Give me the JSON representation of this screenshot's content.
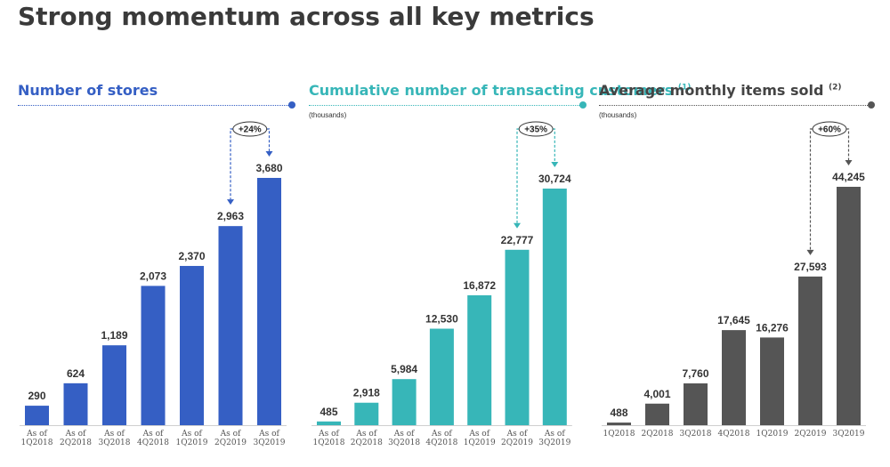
{
  "title": "Strong momentum across all key metrics",
  "colors": {
    "stores": "#355fc4",
    "customers": "#37b6b8",
    "items": "#555555",
    "rule_stores": "#355fc4",
    "rule_customers": "#37b6b8",
    "rule_items": "#555555"
  },
  "chart_data": [
    {
      "type": "bar",
      "title": "Number of stores",
      "title_note": "",
      "unit": "",
      "categories": [
        "As of 1Q2018",
        "As of 2Q2018",
        "As of 3Q2018",
        "As of 4Q2018",
        "As of 1Q2019",
        "As of 2Q2019",
        "As of 3Q2019"
      ],
      "tick_lines": [
        [
          "As of",
          "1Q2018"
        ],
        [
          "As of",
          "2Q2018"
        ],
        [
          "As of",
          "3Q2018"
        ],
        [
          "As of",
          "4Q2018"
        ],
        [
          "As of",
          "1Q2019"
        ],
        [
          "As of",
          "2Q2019"
        ],
        [
          "As of",
          "3Q2019"
        ]
      ],
      "values": [
        290,
        624,
        1189,
        2073,
        2370,
        2963,
        3680
      ],
      "value_labels": [
        "290",
        "624",
        "1,189",
        "2,073",
        "2,370",
        "2,963",
        "3,680"
      ],
      "ylim": [
        0,
        4300
      ],
      "growth": {
        "label": "+24%",
        "from_index": 5,
        "to_index": 6
      }
    },
    {
      "type": "bar",
      "title": "Cumulative number of transacting customers",
      "title_note": "(1)",
      "unit": "(thousands)",
      "categories": [
        "As of 1Q2018",
        "As of 2Q2018",
        "As of 3Q2018",
        "As of 4Q2018",
        "As of 1Q2019",
        "As of 2Q2019",
        "As of 3Q2019"
      ],
      "tick_lines": [
        [
          "As of",
          "1Q2018"
        ],
        [
          "As of",
          "2Q2018"
        ],
        [
          "As of",
          "3Q2018"
        ],
        [
          "As of",
          "4Q2018"
        ],
        [
          "As of",
          "1Q2019"
        ],
        [
          "As of",
          "2Q2019"
        ],
        [
          "As of",
          "3Q2019"
        ]
      ],
      "values": [
        485,
        2918,
        5984,
        12530,
        16872,
        22777,
        30724
      ],
      "value_labels": [
        "485",
        "2,918",
        "5,984",
        "12,530",
        "16,872",
        "22,777",
        "30,724"
      ],
      "ylim": [
        0,
        37000
      ],
      "growth": {
        "label": "+35%",
        "from_index": 5,
        "to_index": 6
      }
    },
    {
      "type": "bar",
      "title": "Average monthly items sold",
      "title_note": "(2)",
      "unit": "(thousands)",
      "categories": [
        "1Q2018",
        "2Q2018",
        "3Q2018",
        "4Q2018",
        "1Q2019",
        "2Q2019",
        "3Q2019"
      ],
      "tick_lines": [
        [
          "1Q2018"
        ],
        [
          "2Q2018"
        ],
        [
          "3Q2018"
        ],
        [
          "4Q2018"
        ],
        [
          "1Q2019"
        ],
        [
          "2Q2019"
        ],
        [
          "3Q2019"
        ]
      ],
      "values": [
        488,
        4001,
        7760,
        17645,
        16276,
        27593,
        44245
      ],
      "value_labels": [
        "488",
        "4,001",
        "7,760",
        "17,645",
        "16,276",
        "27,593",
        "44,245"
      ],
      "ylim": [
        0,
        53000
      ],
      "growth": {
        "label": "+60%",
        "from_index": 5,
        "to_index": 6
      }
    }
  ]
}
